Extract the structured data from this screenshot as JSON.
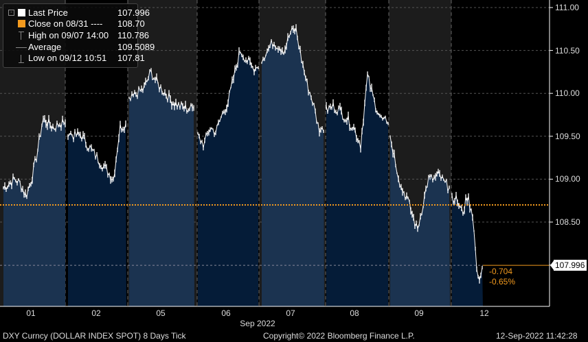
{
  "legend": {
    "rows": [
      {
        "label": "Last Price",
        "value": "107.996",
        "icon": "white-square-icon"
      },
      {
        "label": "Close on 08/31 ----",
        "value": "108.70",
        "icon": "orange-square-icon"
      },
      {
        "label": "High on 09/07 14:00",
        "value": "110.786",
        "icon": "high-marker-icon"
      },
      {
        "label": "Average",
        "value": "109.5089",
        "icon": "average-marker-icon"
      },
      {
        "label": "Low on 09/12 10:51",
        "value": "107.81",
        "icon": "low-marker-icon"
      }
    ]
  },
  "last_price_label": "107.996",
  "change": {
    "abs": "-0.704",
    "pct": "-0.65%"
  },
  "footer": {
    "security": "DXY Curncy (DOLLAR INDEX SPOT) 8 Days  Tick",
    "copyright": "Copyright© 2022 Bloomberg Finance L.P.",
    "timestamp": "12-Sep-2022 11:42:28"
  },
  "chart_data": {
    "type": "area",
    "xlabel": "Sep 2022",
    "x_ticks": [
      "01",
      "02",
      "05",
      "06",
      "07",
      "08",
      "09",
      "12"
    ],
    "y_ticks": [
      "111.00",
      "110.50",
      "110.00",
      "109.50",
      "109.00",
      "108.50"
    ],
    "ylim": [
      107.6,
      111.1
    ],
    "grid": true,
    "reference_line": {
      "label": "Close on 08/31",
      "value": 108.7,
      "color": "#f39a1e"
    },
    "colors": {
      "day_fill_light": "#1b3350",
      "day_fill_dark": "#051c38",
      "night_bg": "#1c1c1c",
      "line": "#ffffff"
    },
    "series": [
      {
        "day": "01",
        "values": [
          108.9,
          108.95,
          109.0,
          108.95,
          108.8,
          109.0,
          109.3,
          109.7,
          109.65,
          109.6,
          109.65,
          109.65
        ]
      },
      {
        "day": "02",
        "values": [
          109.55,
          109.5,
          109.52,
          109.4,
          109.3,
          109.2,
          109.1,
          109.0,
          109.6,
          109.65
        ]
      },
      {
        "day": "05",
        "values": [
          109.9,
          110.0,
          110.05,
          110.25,
          110.1,
          110.0,
          109.9,
          109.85,
          109.82,
          109.83
        ]
      },
      {
        "day": "06",
        "values": [
          109.5,
          109.4,
          109.6,
          109.55,
          109.75,
          109.9,
          110.2,
          110.5,
          110.4,
          110.3,
          110.3
        ]
      },
      {
        "day": "07",
        "values": [
          110.4,
          110.5,
          110.6,
          110.55,
          110.5,
          110.7,
          110.75,
          110.4,
          110.1,
          109.9,
          109.6,
          109.55
        ]
      },
      {
        "day": "08",
        "values": [
          109.8,
          109.85,
          109.8,
          109.7,
          109.6,
          109.4,
          110.2,
          109.9,
          109.7,
          109.65
        ]
      },
      {
        "day": "09",
        "values": [
          109.5,
          109.2,
          108.9,
          108.8,
          108.6,
          108.4,
          108.7,
          109.0,
          109.0,
          109.05,
          108.95,
          108.9
        ]
      },
      {
        "day": "12",
        "values": [
          108.8,
          108.75,
          108.6,
          108.8,
          108.6,
          107.8,
          107.996
        ]
      }
    ]
  }
}
